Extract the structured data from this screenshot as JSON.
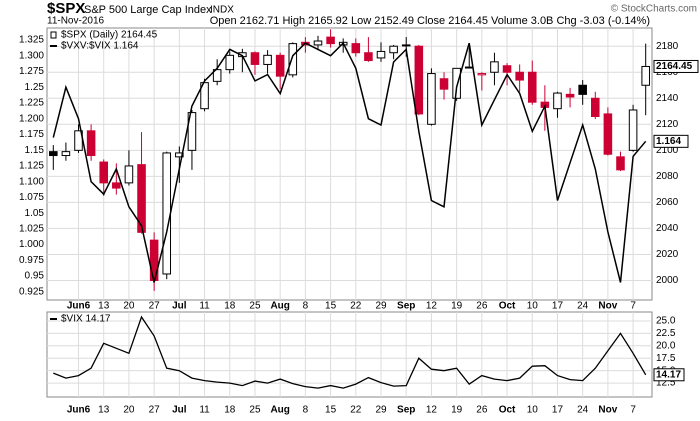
{
  "header": {
    "symbol": "$SPX",
    "name": "S&P 500 Large Cap Index",
    "exchange": "INDX",
    "date": "11-Nov-2016",
    "quote": "Open 2162.71  High 2165.92  Low 2152.49  Close 2164.45  Volume 3.0B  Chg -3.03 (-0.14%)",
    "credit": "© StockCharts.com"
  },
  "chart_data": [
    {
      "type": "candlestick",
      "categories": [
        null,
        null,
        "Jun6",
        null,
        "13",
        null,
        "20",
        null,
        "27",
        null,
        "Jul",
        null,
        "11",
        null,
        "18",
        null,
        "25",
        null,
        "Aug",
        null,
        "8",
        null,
        "15",
        null,
        "22",
        null,
        "29",
        null,
        "Sep",
        null,
        "12",
        null,
        "19",
        null,
        "26",
        null,
        "Oct",
        null,
        "10",
        null,
        "17",
        null,
        "24",
        null,
        "Nov",
        null,
        "7",
        null
      ],
      "ylim": [
        1985,
        2194
      ],
      "yticks": [
        2000,
        2020,
        2040,
        2060,
        2080,
        2100,
        2120,
        2140,
        2160,
        2180
      ],
      "y2lim": [
        0.912,
        1.344
      ],
      "y2ticks": [
        0.925,
        0.95,
        0.975,
        {
          "value": 1,
          "label": "1.000"
        },
        1.025,
        1.05,
        1.075,
        {
          "value": 1.1,
          "label": "1.100"
        },
        1.125,
        1.15,
        1.175,
        {
          "value": 1.2,
          "label": "1.200"
        },
        1.225,
        1.25,
        1.275,
        {
          "value": 1.3,
          "label": "1.300"
        },
        1.325
      ],
      "grid": true,
      "series": [
        {
          "name": "$SPX (Daily) 2164.45",
          "up_color": "#000000",
          "down_color": "#cc0033",
          "open": [
            2099,
            2096,
            2100,
            2115,
            2091,
            2075,
            2075,
            2089,
            2031,
            2005,
            2095,
            2100,
            2132,
            2153,
            2162,
            2172,
            2175,
            2166,
            2173,
            2158,
            2183,
            2181,
            2187,
            2181,
            2182,
            2175,
            2171,
            2175,
            2181,
            2180,
            2120,
            2155,
            2140,
            2164,
            2158,
            2160,
            2165,
            2160,
            2160,
            2137,
            2132,
            2143,
            2150,
            2140,
            2128,
            2095,
            2100,
            2150
          ],
          "high": [
            2104,
            2106,
            2120,
            2120,
            2093,
            2090,
            2100,
            2114,
            2037,
            2099,
            2103,
            2131,
            2155,
            2170,
            2176,
            2178,
            2176,
            2177,
            2175,
            2183,
            2187,
            2188,
            2193,
            2186,
            2186,
            2187,
            2183,
            2181,
            2187,
            2181,
            2163,
            2160,
            2163,
            2179,
            2160,
            2175,
            2167,
            2166,
            2169,
            2150,
            2145,
            2148,
            2154,
            2145,
            2133,
            2099,
            2135,
            2182
          ],
          "low": [
            2085,
            2092,
            2098,
            2092,
            2065,
            2066,
            2073,
            2036,
            1992,
            2001,
            2075,
            2085,
            2130,
            2150,
            2159,
            2160,
            2158,
            2159,
            2147,
            2156,
            2175,
            2177,
            2179,
            2175,
            2172,
            2168,
            2168,
            2170,
            2172,
            2127,
            2119,
            2139,
            2138,
            2163,
            2146,
            2150,
            2150,
            2145,
            2135,
            2115,
            2125,
            2133,
            2135,
            2124,
            2096,
            2084,
            2099,
            2127
          ],
          "close": [
            2096,
            2099,
            2115,
            2096,
            2075,
            2071,
            2088,
            2037,
            2000,
            2098,
            2098,
            2129,
            2152,
            2162,
            2173,
            2175,
            2166,
            2173,
            2157,
            2182,
            2181,
            2184,
            2182,
            2183,
            2175,
            2169,
            2176,
            2180,
            2181,
            2128,
            2159,
            2147,
            2163,
            2164,
            2159,
            2168,
            2160,
            2154,
            2137,
            2133,
            2144,
            2141,
            2143,
            2126,
            2097,
            2085,
            2131,
            2164.45
          ]
        },
        {
          "name": "$VXV:$VIX 1.164",
          "axis": "y2",
          "color": "#000000",
          "values": [
            1.17,
            1.25,
            1.2,
            1.1,
            1.08,
            1.12,
            1.06,
            1.03,
            0.94,
            1.02,
            1.12,
            1.22,
            1.26,
            1.28,
            1.31,
            1.3,
            1.26,
            1.27,
            1.24,
            1.3,
            1.32,
            1.31,
            1.3,
            1.32,
            1.28,
            1.2,
            1.19,
            1.29,
            1.31,
            1.18,
            1.07,
            1.06,
            1.25,
            1.32,
            1.19,
            1.23,
            1.27,
            1.24,
            1.18,
            1.22,
            1.07,
            1.13,
            1.19,
            1.12,
            1.02,
            0.94,
            1.14,
            1.164
          ]
        }
      ]
    },
    {
      "type": "line",
      "ylim": [
        9.7,
        26.8
      ],
      "yticks": [
        12.5,
        {
          "value": 15,
          "label": "15.0"
        },
        17.5,
        {
          "value": 20,
          "label": "20.0"
        },
        22.5,
        {
          "value": 25,
          "label": "25.0"
        }
      ],
      "grid": true,
      "series": [
        {
          "name": "$VIX 14.17",
          "color": "#000000",
          "values": [
            14.5,
            13.5,
            14,
            15.5,
            20.5,
            19.5,
            18.5,
            25.8,
            22,
            15.5,
            15,
            13.5,
            13,
            12.7,
            12.5,
            12,
            12.9,
            12.5,
            13.3,
            12.4,
            11.8,
            11.5,
            12,
            11.5,
            12.3,
            13.6,
            12.6,
            11.9,
            12,
            17.5,
            15.3,
            15,
            15.5,
            12.3,
            14,
            13.3,
            13,
            13.5,
            15.9,
            16,
            14,
            13.2,
            13,
            15.5,
            19,
            22.5,
            18.5,
            14.17
          ]
        }
      ]
    }
  ]
}
